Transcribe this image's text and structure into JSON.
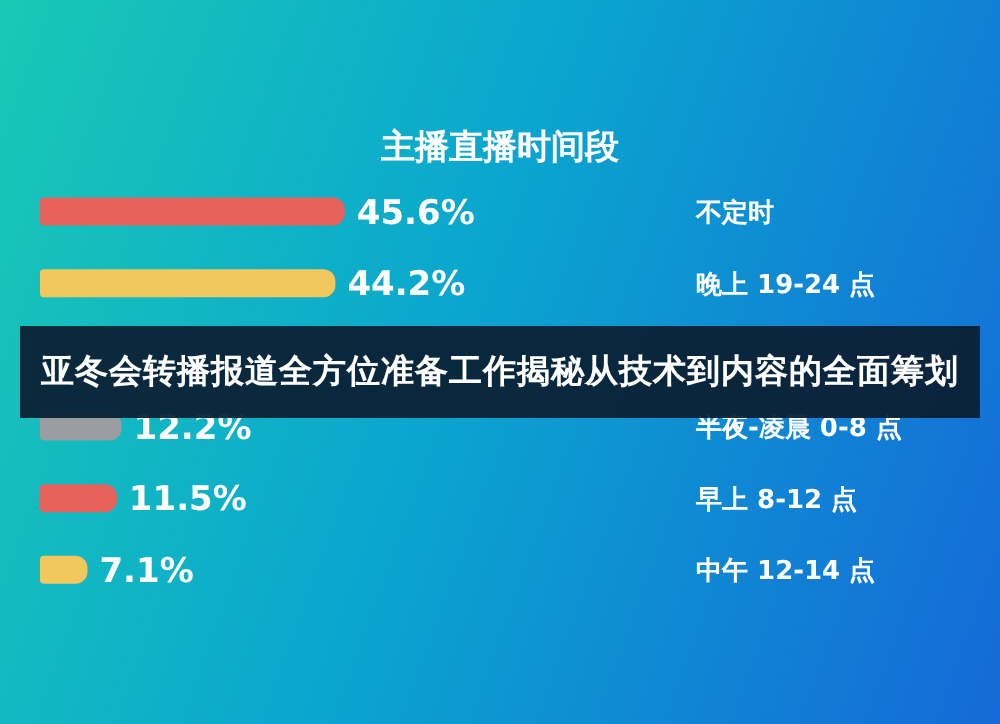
{
  "chart_data": {
    "type": "bar",
    "orientation": "horizontal",
    "title": "主播直播时间段",
    "annotations": [
      "亚冬会转播报道全方位准备工作揭秘从技术到内容的全面筹划"
    ],
    "categories": [
      "不定时",
      "晚上 19-24 点",
      null,
      "半夜-凌晨 0-8 点",
      "早上 8-12 点",
      "中午 12-14 点"
    ],
    "values": [
      45.6,
      44.2,
      null,
      12.2,
      11.5,
      7.1
    ],
    "value_labels": [
      "45.6%",
      "44.2%",
      null,
      "12.2%",
      "11.5%",
      "7.1%"
    ],
    "colors": [
      "#e8625c",
      "#f2c75e",
      "#555a60",
      "#9a9da2",
      "#e8625c",
      "#f2c75e"
    ]
  }
}
